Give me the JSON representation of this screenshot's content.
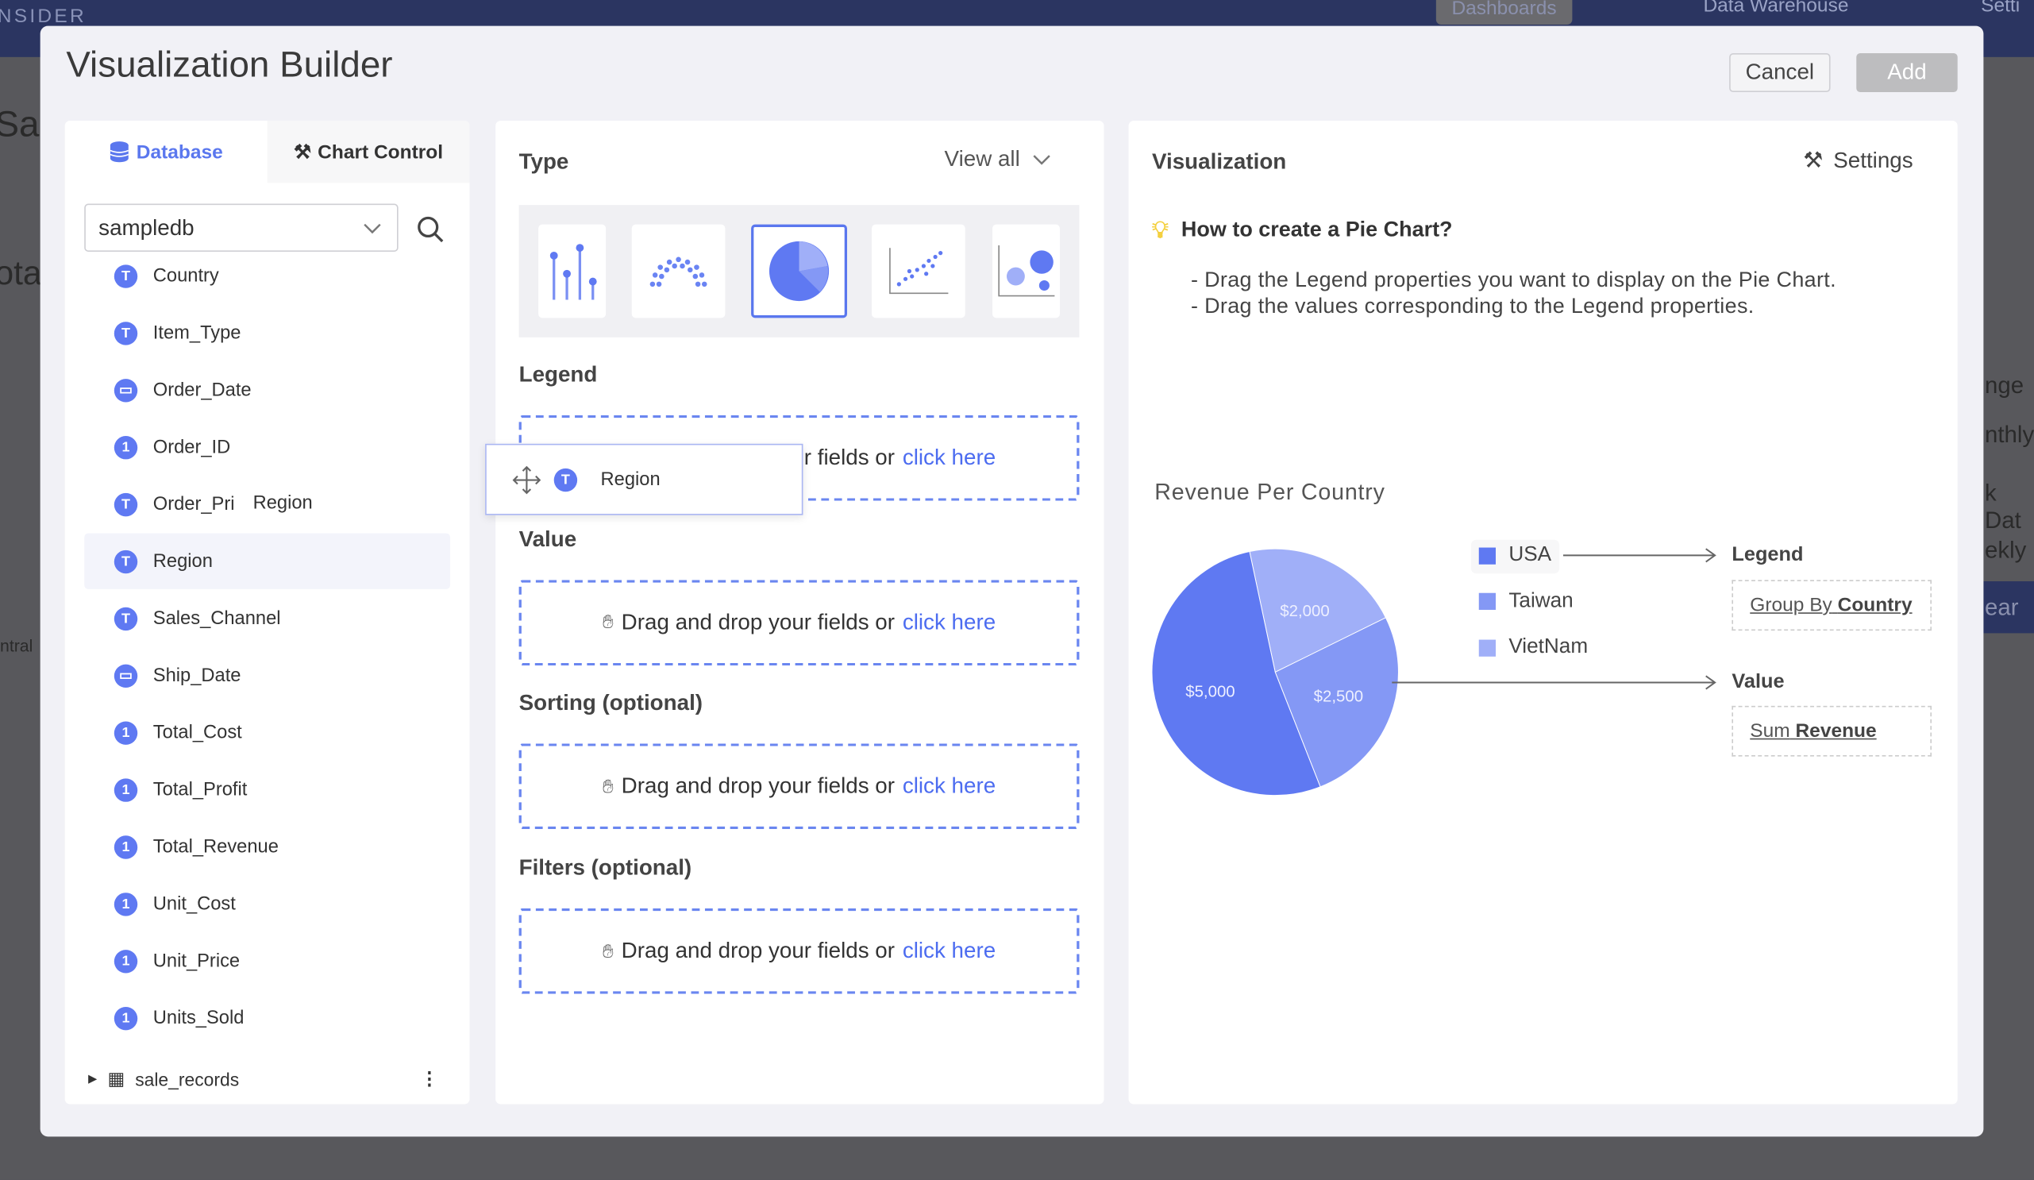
{
  "background": {
    "brand": "NSIDER",
    "nav": [
      {
        "label": "Dashboards"
      },
      {
        "label": "Data Warehouse"
      },
      {
        "label": "Setti"
      }
    ],
    "peek": [
      "Sal",
      "ota",
      "ntral",
      "nge",
      "nthly",
      "k Dat",
      "ekly",
      "ear"
    ]
  },
  "modal": {
    "title": "Visualization Builder",
    "cancel": "Cancel",
    "add": "Add"
  },
  "left": {
    "tabs": [
      {
        "label": "Database",
        "icon": "database-icon"
      },
      {
        "label": "Chart Control",
        "icon": "tools-icon"
      }
    ],
    "database": "sampledb",
    "fields": [
      {
        "name": "Country",
        "type": "T"
      },
      {
        "name": "Item_Type",
        "type": "T"
      },
      {
        "name": "Order_Date",
        "type": "date"
      },
      {
        "name": "Order_ID",
        "type": "1"
      },
      {
        "name": "Order_Pri",
        "type": "T"
      },
      {
        "name": "Region",
        "type": "T",
        "selected": true
      },
      {
        "name": "Sales_Channel",
        "type": "T"
      },
      {
        "name": "Ship_Date",
        "type": "date"
      },
      {
        "name": "Total_Cost",
        "type": "1"
      },
      {
        "name": "Total_Profit",
        "type": "1"
      },
      {
        "name": "Total_Revenue",
        "type": "1"
      },
      {
        "name": "Unit_Cost",
        "type": "1"
      },
      {
        "name": "Unit_Price",
        "type": "1"
      },
      {
        "name": "Units_Sold",
        "type": "1"
      }
    ],
    "table": "sale_records",
    "drag_ghost": "Region",
    "drag_tooltip": "Region"
  },
  "middle": {
    "type_label": "Type",
    "view_all": "View all",
    "selected_type": "pie",
    "sections": [
      {
        "label": "Legend",
        "text": "Drag and drop your fields or",
        "link": "click here"
      },
      {
        "label": "Value",
        "text": "Drag and drop your fields or",
        "link": "click here"
      },
      {
        "label": "Sorting (optional)",
        "text": "Drag and drop your fields or",
        "link": "click here"
      },
      {
        "label": "Filters (optional)",
        "text": "Drag and drop your fields or",
        "link": "click here"
      }
    ]
  },
  "right": {
    "title": "Visualization",
    "settings": "Settings",
    "howto": "How to create a Pie Chart?",
    "steps": [
      "- Drag the Legend properties you want to display on the Pie Chart.",
      "- Drag the values corresponding to the Legend properties."
    ],
    "legend_label": "Legend",
    "value_label": "Value",
    "group_by": "Group By",
    "group_field": "Country",
    "sum": "Sum",
    "sum_field": "Revenue"
  },
  "chart_data": {
    "type": "pie",
    "title": "Revenue Per Country",
    "categories": [
      "USA",
      "Taiwan",
      "VietNam"
    ],
    "values": [
      5000,
      2500,
      2000
    ],
    "labels": [
      "$5,000",
      "$2,500",
      "$2,000"
    ],
    "colors": [
      "#5f79f2",
      "#8498f5",
      "#a0aff8"
    ],
    "legend": "right"
  }
}
